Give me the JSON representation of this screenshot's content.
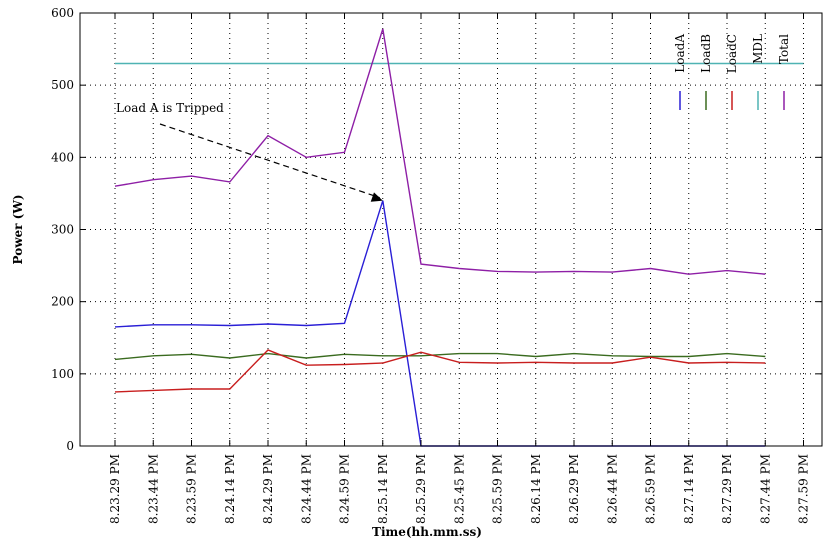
{
  "chart_data": {
    "type": "line",
    "title": "",
    "xlabel": "Time(hh.mm.ss)",
    "ylabel": "Power (W)",
    "ylim": [
      0,
      600
    ],
    "yticks": [
      "0",
      "100",
      "200",
      "300",
      "400",
      "500",
      "600"
    ],
    "grid": true,
    "legend_position": "top-right",
    "categories": [
      "8.23.29 PM",
      "8.23.44 PM",
      "8.23.59 PM",
      "8.24.14 PM",
      "8.24.29 PM",
      "8.24.44 PM",
      "8.24.59 PM",
      "8.25.14 PM",
      "8.25.29 PM",
      "8.25.45 PM",
      "8.25.59 PM",
      "8.26.14 PM",
      "8.26.29 PM",
      "8.26.44 PM",
      "8.26.59 PM",
      "8.27.14 PM",
      "8.27.29 PM",
      "8.27.44 PM",
      "8.27.59 PM"
    ],
    "series": [
      {
        "name": "LoadA",
        "color": "#2a1fd6",
        "values": [
          165,
          168,
          168,
          167,
          169,
          167,
          170,
          340,
          0,
          0,
          0,
          0,
          0,
          0,
          0,
          0,
          0,
          0,
          null
        ]
      },
      {
        "name": "LoadB",
        "color": "#3a6b1f",
        "values": [
          120,
          125,
          127,
          122,
          128,
          122,
          127,
          125,
          125,
          128,
          128,
          124,
          128,
          125,
          124,
          124,
          128,
          124,
          null
        ]
      },
      {
        "name": "LoadC",
        "color": "#c81e1e",
        "values": [
          75,
          77,
          79,
          79,
          133,
          112,
          113,
          115,
          130,
          116,
          115,
          116,
          115,
          115,
          123,
          115,
          116,
          115,
          null
        ]
      },
      {
        "name": "MDL",
        "color": "#4fb3b3",
        "values": [
          530,
          530,
          530,
          530,
          530,
          530,
          530,
          530,
          530,
          530,
          530,
          530,
          530,
          530,
          530,
          530,
          530,
          530,
          530
        ]
      },
      {
        "name": "Total",
        "color": "#8e1fa6",
        "values": [
          360,
          369,
          374,
          366,
          430,
          400,
          407,
          578,
          252,
          246,
          242,
          241,
          242,
          241,
          246,
          238,
          243,
          238,
          null
        ]
      }
    ],
    "annotations": [
      {
        "text": "Load A is Tripped",
        "target_category": "8.25.14 PM",
        "target_value": 340
      }
    ]
  }
}
